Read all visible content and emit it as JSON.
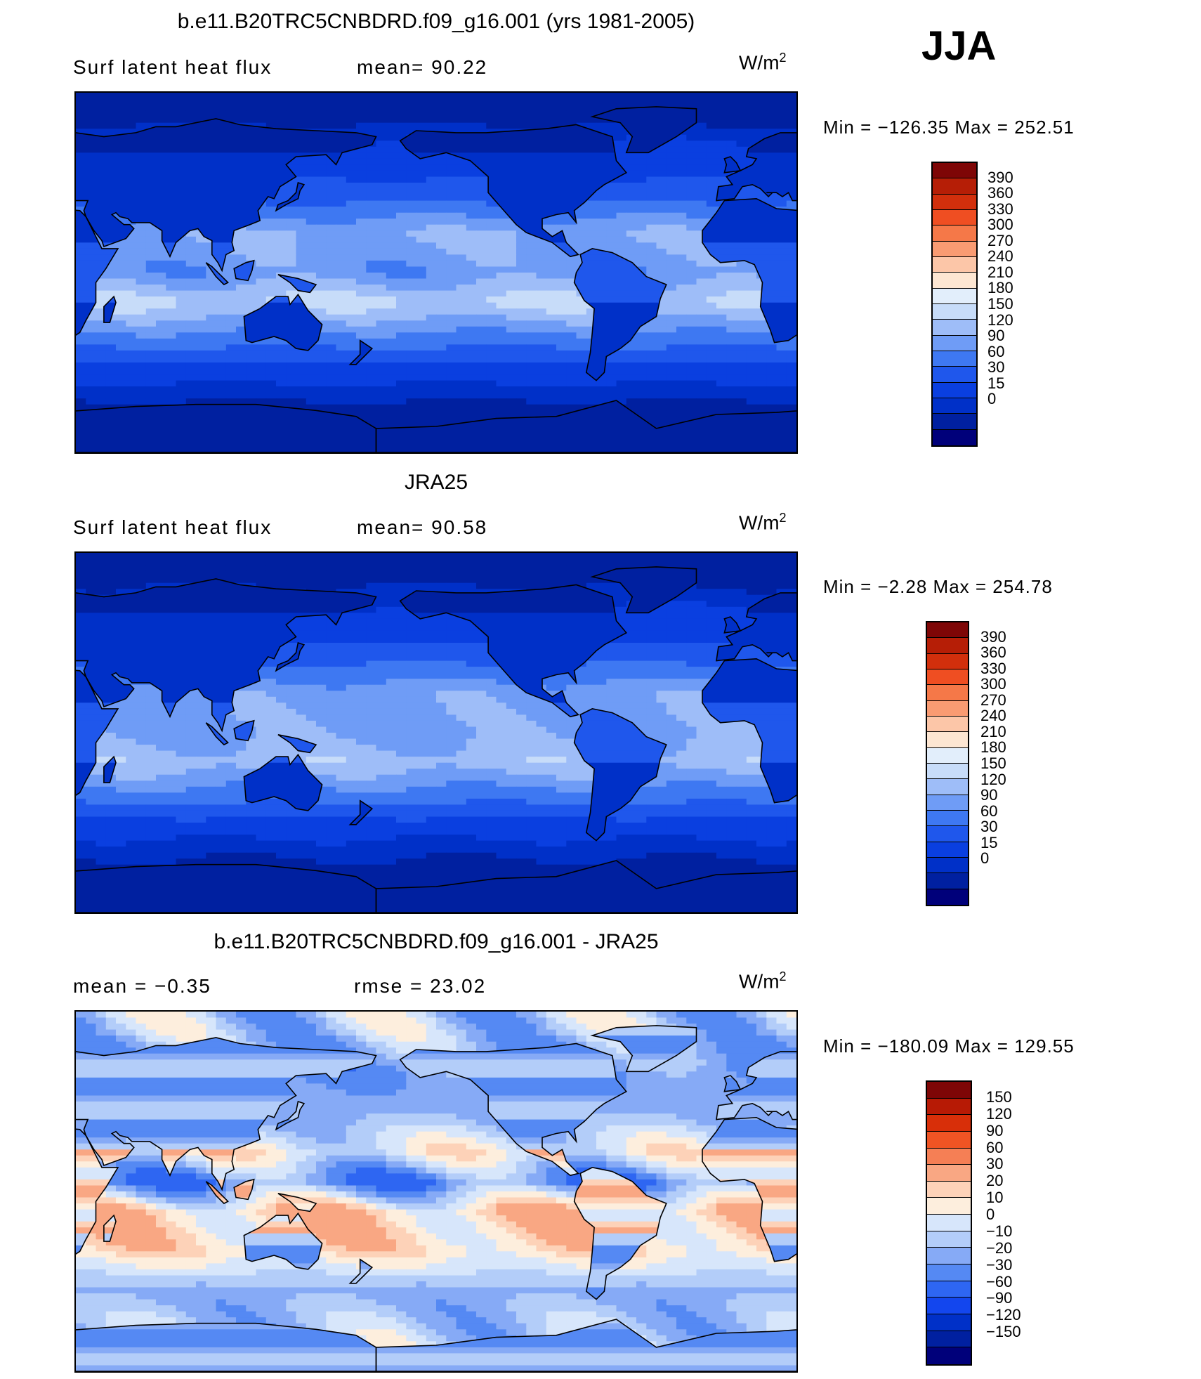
{
  "season": "JJA",
  "colors": {
    "abs_scale": [
      "#00007a",
      "#0020a0",
      "#0030c8",
      "#0a3fe0",
      "#1f57ec",
      "#3e78f2",
      "#6f9cf6",
      "#9ebdf8",
      "#c7dcf9",
      "#e2eefb",
      "#fde6d2",
      "#fcc6a8",
      "#f99b72",
      "#f57848",
      "#ef4e22",
      "#d22f0c",
      "#b61e06",
      "#7e0606"
    ],
    "diff_scale": [
      "#00007a",
      "#0020a0",
      "#0030c8",
      "#1346ee",
      "#2e66f2",
      "#5589f3",
      "#86aaf6",
      "#b3cdf9",
      "#d7e6fb",
      "#fdeedd",
      "#fdd2b8",
      "#f9a783",
      "#f57f55",
      "#ef5424",
      "#d82f09",
      "#b71a05",
      "#7e0606"
    ],
    "continent_outline": "#000000"
  },
  "panels": [
    {
      "title": "b.e11.B20TRC5CNBDRD.f09_g16.001 (yrs 1981-2005)",
      "left_label": "Surf  latent  heat  flux",
      "mid_label": "mean=   90.22",
      "units": "W/m",
      "units_sup": "2",
      "minmax": "Min  =  −126.35  Max  =  252.51",
      "colorbar_levels": [
        "390",
        "360",
        "330",
        "300",
        "270",
        "240",
        "210",
        "180",
        "150",
        "120",
        "90",
        "60",
        "30",
        "15",
        "0"
      ]
    },
    {
      "title": "JRA25",
      "left_label": "Surf  latent  heat  flux",
      "mid_label": "mean=   90.58",
      "units": "W/m",
      "units_sup": "2",
      "minmax": "Min  =    −2.28  Max  =  254.78",
      "colorbar_levels": [
        "390",
        "360",
        "330",
        "300",
        "270",
        "240",
        "210",
        "180",
        "150",
        "120",
        "90",
        "60",
        "30",
        "15",
        "0"
      ]
    },
    {
      "title": "b.e11.B20TRC5CNBDRD.f09_g16.001 - JRA25",
      "left_label": "mean  =    −0.35",
      "mid_label": "rmse  =    23.02",
      "units": "W/m",
      "units_sup": "2",
      "minmax": "Min  =  −180.09  Max  =  129.55",
      "colorbar_levels": [
        "150",
        "120",
        "90",
        "60",
        "30",
        "20",
        "10",
        "0",
        "−10",
        "−20",
        "−30",
        "−60",
        "−90",
        "−120",
        "−150"
      ]
    }
  ],
  "chart_data": [
    {
      "type": "heatmap",
      "title": "b.e11.B20TRC5CNBDRD.f09_g16.001 (yrs 1981-2005)",
      "subtitle": "Surf latent heat flux",
      "units": "W/m2",
      "season": "JJA",
      "mean": 90.22,
      "min": -126.35,
      "max": 252.51,
      "levels": [
        0,
        15,
        30,
        60,
        90,
        120,
        150,
        180,
        210,
        240,
        270,
        300,
        330,
        360,
        390
      ],
      "zonal_bands_approx": [
        {
          "lat": 80,
          "value": 5
        },
        {
          "lat": 60,
          "value": 40
        },
        {
          "lat": 40,
          "value": 70
        },
        {
          "lat": 20,
          "value": 150
        },
        {
          "lat": 0,
          "value": 130
        },
        {
          "lat": -15,
          "value": 190
        },
        {
          "lat": -30,
          "value": 120
        },
        {
          "lat": -50,
          "value": 40
        },
        {
          "lat": -70,
          "value": 5
        }
      ]
    },
    {
      "type": "heatmap",
      "title": "JRA25",
      "subtitle": "Surf latent heat flux",
      "units": "W/m2",
      "season": "JJA",
      "mean": 90.58,
      "min": -2.28,
      "max": 254.78,
      "levels": [
        0,
        15,
        30,
        60,
        90,
        120,
        150,
        180,
        210,
        240,
        270,
        300,
        330,
        360,
        390
      ],
      "zonal_bands_approx": [
        {
          "lat": 80,
          "value": 5
        },
        {
          "lat": 60,
          "value": 35
        },
        {
          "lat": 40,
          "value": 70
        },
        {
          "lat": 20,
          "value": 140
        },
        {
          "lat": 0,
          "value": 140
        },
        {
          "lat": -15,
          "value": 170
        },
        {
          "lat": -30,
          "value": 110
        },
        {
          "lat": -50,
          "value": 35
        },
        {
          "lat": -70,
          "value": 5
        }
      ]
    },
    {
      "type": "heatmap",
      "title": "b.e11.B20TRC5CNBDRD.f09_g16.001 - JRA25",
      "units": "W/m2",
      "season": "JJA",
      "mean": -0.35,
      "rmse": 23.02,
      "min": -180.09,
      "max": 129.55,
      "levels": [
        -150,
        -120,
        -90,
        -60,
        -30,
        -20,
        -10,
        0,
        10,
        20,
        30,
        60,
        90,
        120,
        150
      ],
      "zonal_bands_approx": [
        {
          "lat": 80,
          "value": -5
        },
        {
          "lat": 60,
          "value": -20
        },
        {
          "lat": 40,
          "value": -15
        },
        {
          "lat": 20,
          "value": 10
        },
        {
          "lat": 5,
          "value": -25
        },
        {
          "lat": -10,
          "value": 25
        },
        {
          "lat": -30,
          "value": 20
        },
        {
          "lat": -50,
          "value": -15
        },
        {
          "lat": -70,
          "value": -5
        }
      ]
    }
  ]
}
